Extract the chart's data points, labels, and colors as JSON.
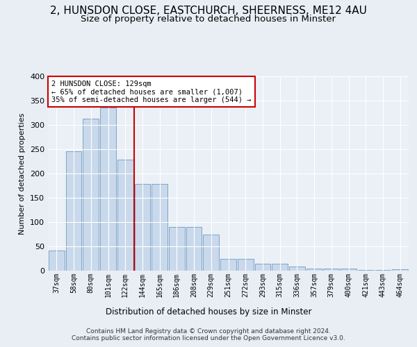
{
  "title": "2, HUNSDON CLOSE, EASTCHURCH, SHEERNESS, ME12 4AU",
  "subtitle": "Size of property relative to detached houses in Minster",
  "xlabel": "Distribution of detached houses by size in Minster",
  "ylabel": "Number of detached properties",
  "categories": [
    "37sqm",
    "58sqm",
    "80sqm",
    "101sqm",
    "122sqm",
    "144sqm",
    "165sqm",
    "186sqm",
    "208sqm",
    "229sqm",
    "251sqm",
    "272sqm",
    "293sqm",
    "315sqm",
    "336sqm",
    "357sqm",
    "379sqm",
    "400sqm",
    "421sqm",
    "443sqm",
    "464sqm"
  ],
  "values": [
    42,
    245,
    313,
    335,
    228,
    178,
    178,
    90,
    90,
    75,
    25,
    25,
    14,
    14,
    8,
    4,
    4,
    4,
    2,
    2,
    3
  ],
  "bar_color": "#c9d9eb",
  "bar_edge_color": "#7ba4c7",
  "vline_x_index": 4,
  "vline_color": "#cc0000",
  "annotation_text": "2 HUNSDON CLOSE: 129sqm\n← 65% of detached houses are smaller (1,007)\n35% of semi-detached houses are larger (544) →",
  "annotation_box_color": "#ffffff",
  "annotation_box_edge": "#cc0000",
  "bg_color": "#e8eef4",
  "plot_bg_color": "#eaf0f6",
  "footer": "Contains HM Land Registry data © Crown copyright and database right 2024.\nContains public sector information licensed under the Open Government Licence v3.0.",
  "ylim": [
    0,
    400
  ],
  "title_fontsize": 11,
  "subtitle_fontsize": 9.5
}
